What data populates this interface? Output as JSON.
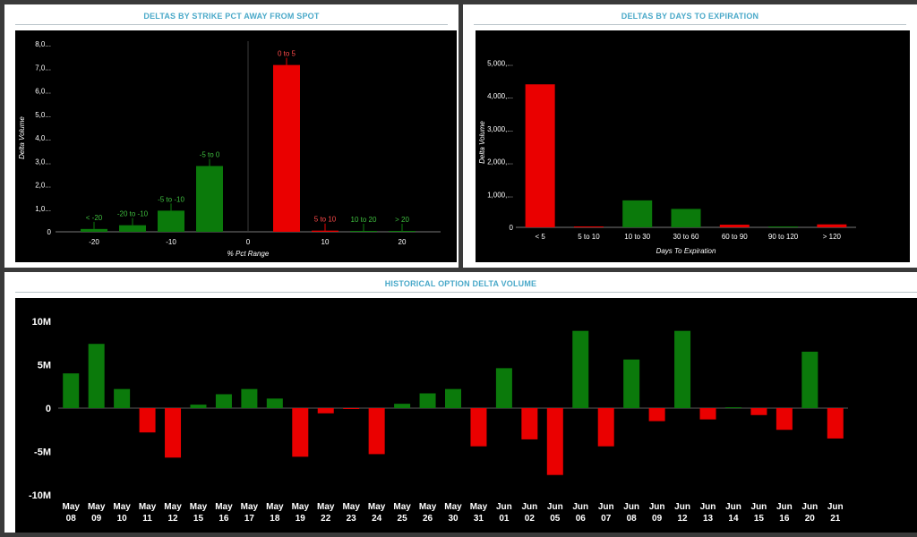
{
  "colors": {
    "positive": "#0b7a0b",
    "negative": "#ea0000",
    "title": "#4aa9c9",
    "axis_text": "#ffffff",
    "zero_line": "#5a5a5a"
  },
  "panels": {
    "strike": {
      "title": "DELTAS BY STRIKE PCT AWAY FROM SPOT"
    },
    "days": {
      "title": "DELTAS BY DAYS TO EXPIRATION"
    },
    "history": {
      "title": "HISTORICAL OPTION DELTA VOLUME"
    }
  },
  "chart_data": [
    {
      "id": "strike",
      "type": "bar",
      "title": "DELTAS BY STRIKE PCT AWAY FROM SPOT",
      "xlabel": "% Pct Range",
      "ylabel": "Delta Volume",
      "x_ticks": [
        "-20",
        "-10",
        "0",
        "10",
        "20"
      ],
      "y_ticks": [
        "0",
        "1,0...",
        "2,0...",
        "3,0...",
        "4,0...",
        "5,0...",
        "6,0...",
        "7,0...",
        "8,0..."
      ],
      "ylim": [
        0,
        8000
      ],
      "grid": false,
      "bars": [
        {
          "label": "< -20",
          "value": 120,
          "sign": "positive"
        },
        {
          "label": "-20 to -10",
          "value": 280,
          "sign": "positive"
        },
        {
          "label": "-5 to -10",
          "value": 900,
          "sign": "positive"
        },
        {
          "label": "-5 to 0",
          "value": 2800,
          "sign": "positive"
        },
        {
          "label": "0 to 5",
          "value": 7100,
          "sign": "negative"
        },
        {
          "label": "5 to 10",
          "value": 50,
          "sign": "negative"
        },
        {
          "label": "10 to 20",
          "value": 10,
          "sign": "positive"
        },
        {
          "label": "> 20",
          "value": 5,
          "sign": "positive"
        }
      ]
    },
    {
      "id": "days",
      "type": "bar",
      "title": "DELTAS BY DAYS TO EXPIRATION",
      "xlabel": "Days To Expiration",
      "ylabel": "Delta Volume",
      "categories": [
        "< 5",
        "5 to 10",
        "10 to 30",
        "30 to 60",
        "60 to 90",
        "90 to 120",
        "> 120"
      ],
      "values": [
        4350,
        5,
        820,
        560,
        80,
        20,
        90
      ],
      "signs": [
        "negative",
        "negative",
        "positive",
        "positive",
        "negative",
        "positive",
        "negative"
      ],
      "y_ticks": [
        "0",
        "1,000,...",
        "2,000,...",
        "3,000,...",
        "4,000,...",
        "5,000,..."
      ],
      "ylim": [
        0,
        5500
      ],
      "grid": false
    },
    {
      "id": "history",
      "type": "bar",
      "title": "HISTORICAL OPTION DELTA VOLUME",
      "categories_month": [
        "May",
        "May",
        "May",
        "May",
        "May",
        "May",
        "May",
        "May",
        "May",
        "May",
        "May",
        "May",
        "May",
        "May",
        "May",
        "May",
        "May",
        "Jun",
        "Jun",
        "Jun",
        "Jun",
        "Jun",
        "Jun",
        "Jun",
        "Jun",
        "Jun",
        "Jun",
        "Jun",
        "Jun",
        "Jun",
        "Jun"
      ],
      "categories_day": [
        "08",
        "09",
        "10",
        "11",
        "12",
        "15",
        "16",
        "17",
        "18",
        "19",
        "22",
        "23",
        "24",
        "25",
        "26",
        "30",
        "31",
        "01",
        "02",
        "05",
        "06",
        "07",
        "08",
        "09",
        "12",
        "13",
        "14",
        "15",
        "16",
        "20",
        "21"
      ],
      "values": [
        4.0,
        7.4,
        2.2,
        -2.8,
        -5.7,
        0.4,
        1.6,
        2.2,
        1.1,
        -5.6,
        -0.6,
        -0.1,
        -5.3,
        0.5,
        1.7,
        2.2,
        -4.4,
        4.6,
        -3.6,
        -7.7,
        8.9,
        -4.4,
        5.6,
        -1.5,
        8.9,
        -1.3,
        0.1,
        -0.8,
        -2.5,
        6.5,
        -3.5
      ],
      "y_ticks": [
        "10M",
        "5M",
        "0",
        "-5M",
        "-10M"
      ],
      "ylim": [
        -10,
        10
      ],
      "units": "M",
      "grid": false
    }
  ]
}
